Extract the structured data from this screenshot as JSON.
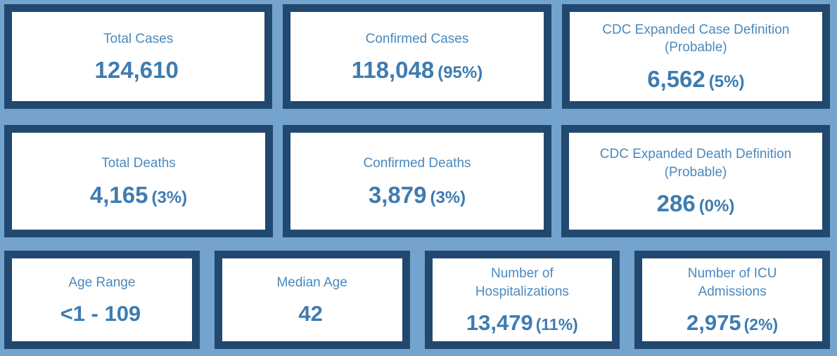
{
  "colors": {
    "background": "#74A3CD",
    "card_border": "#21486E",
    "card_bg": "#FFFFFF",
    "label_color": "#4A89BE",
    "value_color": "#3E7CB1"
  },
  "rows": [
    {
      "cards": [
        {
          "label": "Total Cases",
          "value": "124,610"
        },
        {
          "label": "Confirmed Cases",
          "value": "118,048",
          "pct": "(95%)"
        },
        {
          "label": "CDC Expanded Case Definition (Probable)",
          "value": "6,562",
          "pct": "(5%)"
        }
      ]
    },
    {
      "cards": [
        {
          "label": "Total Deaths",
          "value": "4,165",
          "pct": "(3%)"
        },
        {
          "label": "Confirmed Deaths",
          "value": "3,879",
          "pct": "(3%)"
        },
        {
          "label": "CDC Expanded Death Definition (Probable)",
          "value": "286",
          "pct": "(0%)"
        }
      ]
    },
    {
      "cards": [
        {
          "label": "Age Range",
          "value": "<1 - 109"
        },
        {
          "label": "Median Age",
          "value": "42"
        },
        {
          "label": "Number of Hospitalizations",
          "value": "13,479",
          "pct": "(11%)"
        },
        {
          "label": "Number of ICU Admissions",
          "value": "2,975",
          "pct": "(2%)"
        }
      ]
    }
  ]
}
